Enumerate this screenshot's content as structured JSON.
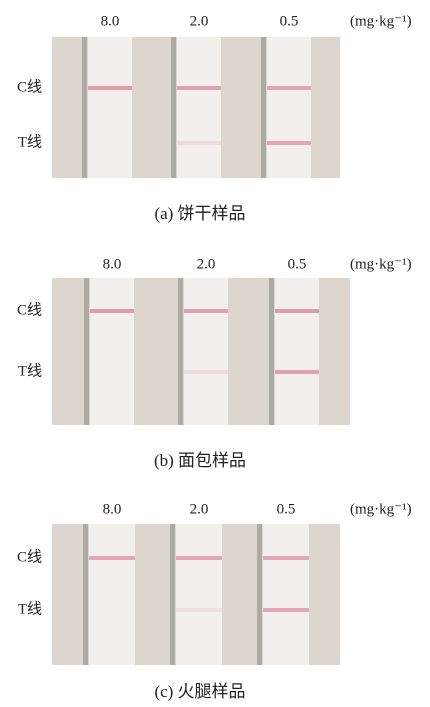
{
  "panels": [
    {
      "concentrations": [
        "8.0",
        "2.0",
        "0.5"
      ],
      "unit": "(mg·kg⁻¹)",
      "c_label": "C线",
      "t_label": "T线",
      "caption": "(a)  饼干样品"
    },
    {
      "concentrations": [
        "8.0",
        "2.0",
        "0.5"
      ],
      "unit": "(mg·kg⁻¹)",
      "c_label": "C线",
      "t_label": "T线",
      "caption": "(b)  面包样品"
    },
    {
      "concentrations": [
        "8.0",
        "2.0",
        "0.5"
      ],
      "unit": "(mg·kg⁻¹)",
      "c_label": "C线",
      "t_label": "T线",
      "caption": "(c)  火腿样品"
    }
  ]
}
